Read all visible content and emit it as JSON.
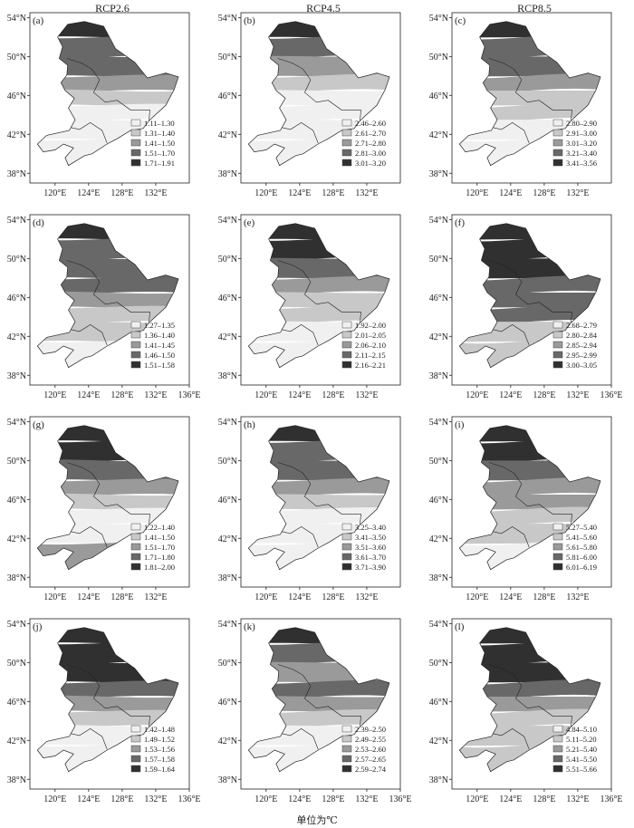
{
  "columns": [
    "RCP2.6",
    "RCP4.5",
    "RCP8.5"
  ],
  "unit_note": "单位为℃",
  "lat_ticks": [
    "54°N",
    "50°N",
    "46°N",
    "42°N",
    "38°N"
  ],
  "lon_ticks_short": [
    "120°E",
    "124°E",
    "128°E",
    "132°E"
  ],
  "lon_ticks_long": [
    "120°E",
    "124°E",
    "128°E",
    "132°E",
    "136°E"
  ],
  "shades": [
    "#f0f0f0",
    "#c8c8c8",
    "#9a9a9a",
    "#686868",
    "#303030"
  ],
  "panels": [
    {
      "label": "(a)",
      "legend": [
        "1.11–1.30",
        "1.31–1.40",
        "1.41–1.50",
        "1.51–1.70",
        "1.71–1.91"
      ],
      "pattern": [
        4,
        3,
        3,
        2,
        1,
        0,
        0,
        0
      ],
      "long_axis": false
    },
    {
      "label": "(b)",
      "legend": [
        "2.46–2.60",
        "2.61–2.70",
        "2.71–2.80",
        "2.81–3.00",
        "3.01–3.20"
      ],
      "pattern": [
        4,
        3,
        2,
        1,
        0,
        0,
        0,
        0
      ],
      "long_axis": false
    },
    {
      "label": "(c)",
      "legend": [
        "2.80–2.90",
        "2.91–3.00",
        "3.01–3.20",
        "3.21–3.40",
        "3.41–3.56"
      ],
      "pattern": [
        4,
        3,
        3,
        2,
        1,
        1,
        0,
        0
      ],
      "long_axis": false
    },
    {
      "label": "(d)",
      "legend": [
        "1.27–1.35",
        "1.36–1.40",
        "1.41–1.45",
        "1.46–1.50",
        "1.51–1.58"
      ],
      "pattern": [
        4,
        3,
        3,
        3,
        2,
        1,
        1,
        0
      ],
      "long_axis": true
    },
    {
      "label": "(e)",
      "legend": [
        "1.92–2.00",
        "2.01–2.05",
        "2.06–2.10",
        "2.11–2.15",
        "2.16–2.21"
      ],
      "pattern": [
        4,
        4,
        3,
        2,
        1,
        1,
        0,
        0
      ],
      "long_axis": false
    },
    {
      "label": "(f)",
      "legend": [
        "2.68–2.79",
        "2.80–2.84",
        "2.85–2.94",
        "2.95–2.99",
        "3.00–3.05"
      ],
      "pattern": [
        4,
        4,
        4,
        3,
        3,
        3,
        1,
        1
      ],
      "long_axis": true
    },
    {
      "label": "(g)",
      "legend": [
        "1.22–1.40",
        "1.41–1.50",
        "1.51–1.70",
        "1.71–1.80",
        "1.81–2.00"
      ],
      "pattern": [
        4,
        4,
        3,
        2,
        1,
        0,
        0,
        2
      ],
      "long_axis": false
    },
    {
      "label": "(h)",
      "legend": [
        "3.25–3.40",
        "3.41–3.50",
        "3.51–3.60",
        "3.61–3.70",
        "3.71–3.90"
      ],
      "pattern": [
        4,
        3,
        3,
        2,
        1,
        0,
        0,
        0
      ],
      "long_axis": false
    },
    {
      "label": "(i)",
      "legend": [
        "5.27–5.40",
        "5.41–5.60",
        "5.61–5.80",
        "5.81–6.00",
        "6.01–6.19"
      ],
      "pattern": [
        4,
        4,
        3,
        2,
        2,
        1,
        1,
        0
      ],
      "long_axis": false
    },
    {
      "label": "(j)",
      "legend": [
        "1.42–1.48",
        "1.49–1.52",
        "1.53–1.56",
        "1.57–1.58",
        "1.59–1.64"
      ],
      "pattern": [
        4,
        4,
        4,
        3,
        2,
        1,
        0,
        0
      ],
      "long_axis": true
    },
    {
      "label": "(k)",
      "legend": [
        "2.39–2.50",
        "2.49–2.55",
        "2.53–2.60",
        "2.57–2.65",
        "2.59–2.74"
      ],
      "pattern": [
        4,
        3,
        2,
        3,
        2,
        1,
        0,
        0
      ],
      "long_axis": true
    },
    {
      "label": "(l)",
      "legend": [
        "4.84–5.10",
        "5.11–5.20",
        "5.21–5.40",
        "5.41–5.50",
        "5.51–5.66"
      ],
      "pattern": [
        4,
        4,
        4,
        3,
        2,
        1,
        1,
        1
      ],
      "long_axis": true
    }
  ]
}
